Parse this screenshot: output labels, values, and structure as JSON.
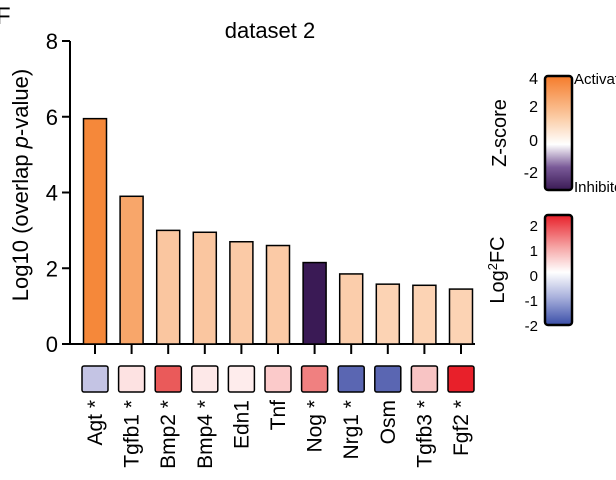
{
  "panel_letter": "F",
  "chart_data": {
    "type": "bar",
    "title": "dataset 2",
    "ylabel": "Log10 (overlap p-value)",
    "ylabel_parts": {
      "before": "Log10 (overlap ",
      "italic": "p",
      "after": "-value)"
    },
    "ylim": [
      0,
      8
    ],
    "yticks": [
      "0",
      "2",
      "4",
      "6",
      "8"
    ],
    "categories": [
      "Agt",
      "Tgfb1",
      "Bmp2",
      "Bmp4",
      "Edn1",
      "Tnf",
      "Nog",
      "Nrg1",
      "Osm",
      "Tgfb3",
      "Fgf2"
    ],
    "starred": [
      true,
      true,
      true,
      true,
      false,
      false,
      true,
      true,
      false,
      true,
      true
    ],
    "star_symbol": "*",
    "values": [
      5.95,
      3.9,
      3.0,
      2.95,
      2.7,
      2.6,
      2.15,
      1.85,
      1.58,
      1.55,
      1.45
    ],
    "zscore_colors": [
      "#f5883a",
      "#f8a66a",
      "#fac6a0",
      "#fac6a0",
      "#fbcaa6",
      "#fbcaa6",
      "#3a1a55",
      "#fbcdab",
      "#fcd3b4",
      "#fcd3b4",
      "#fcd3b4"
    ],
    "log2fc_colors": [
      "#c4c4e4",
      "#fde2e2",
      "#ea5a5a",
      "#fde8e8",
      "#feecec",
      "#fbcaca",
      "#f08080",
      "#5a66b2",
      "#5a66b2",
      "#f8c4c4",
      "#e8202a"
    ]
  },
  "zscore_legend": {
    "title": "Z-score",
    "ticks": [
      "4",
      "2",
      "0",
      "-2"
    ],
    "top_label": "Activated",
    "bottom_label": "Inhibited",
    "gradient": [
      "#f57b2b",
      "#fbc9a0",
      "#ffffff",
      "#7a5a98",
      "#3a1a55"
    ]
  },
  "log2fc_legend": {
    "title_main": "Log",
    "title_sup": "2",
    "title_end": "FC",
    "ticks": [
      "2",
      "1",
      "0",
      "-1",
      "-2"
    ],
    "gradient": [
      "#e8202a",
      "#f6a8a8",
      "#ffffff",
      "#a8b0dc",
      "#3a4ea8"
    ]
  }
}
